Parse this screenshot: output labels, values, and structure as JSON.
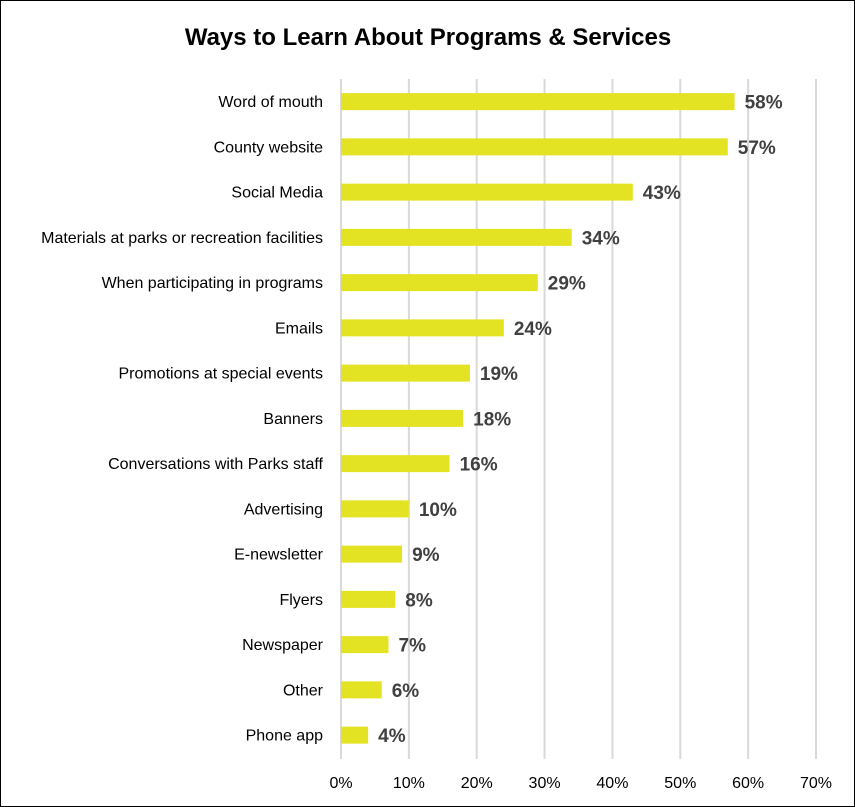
{
  "chart_data": {
    "type": "bar",
    "orientation": "horizontal",
    "title": "Ways to Learn About Programs & Services",
    "xlabel": "",
    "ylabel": "",
    "categories": [
      "Word of mouth",
      "County website",
      "Social Media",
      "Materials at parks or recreation facilities",
      "When participating in programs",
      "Emails",
      "Promotions at special events",
      "Banners",
      "Conversations with Parks staff",
      "Advertising",
      "E-newsletter",
      "Flyers",
      "Newspaper",
      "Other",
      "Phone app"
    ],
    "values": [
      58,
      57,
      43,
      34,
      29,
      24,
      19,
      18,
      16,
      10,
      9,
      8,
      7,
      6,
      4
    ],
    "value_labels": [
      "58%",
      "57%",
      "43%",
      "34%",
      "29%",
      "24%",
      "19%",
      "18%",
      "16%",
      "10%",
      "9%",
      "8%",
      "7%",
      "6%",
      "4%"
    ],
    "xlim": [
      0,
      70
    ],
    "ticks": [
      0,
      10,
      20,
      30,
      40,
      50,
      60,
      70
    ],
    "tick_labels": [
      "0%",
      "10%",
      "20%",
      "30%",
      "40%",
      "50%",
      "60%",
      "70%"
    ],
    "grid": true,
    "legend": "none",
    "colors": {
      "bar": "#e3e323",
      "grid": "#d9d9d9",
      "data_label": "#404040"
    }
  }
}
